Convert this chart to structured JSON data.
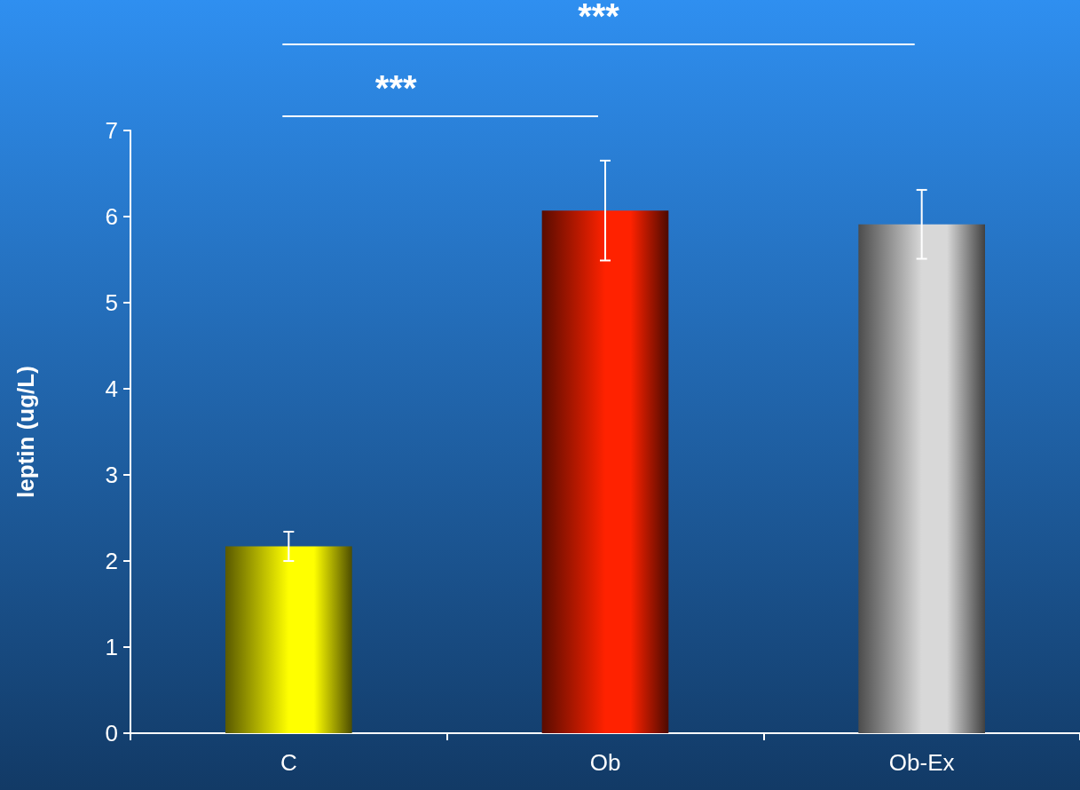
{
  "chart_data": {
    "type": "bar",
    "ylabel": "leptin (ug/L)",
    "categories": [
      "C",
      "Ob",
      "Ob-Ex"
    ],
    "values": [
      2.17,
      6.07,
      5.91
    ],
    "colors": [
      "#ffff00",
      "#ff2200",
      "#d8d8d8"
    ],
    "errors": [
      0.17,
      0.58,
      0.4
    ],
    "ylim": [
      0,
      7
    ],
    "yticks": [
      0,
      1,
      2,
      3,
      4,
      5,
      6,
      7
    ],
    "grid": false,
    "annotations": [
      "***",
      "***"
    ]
  }
}
